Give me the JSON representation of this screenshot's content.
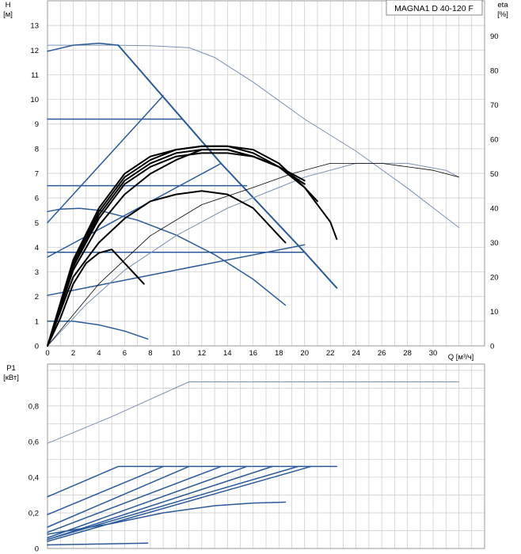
{
  "chart_data": [
    {
      "type": "line",
      "name": "pump-curves",
      "title": "MAGNA1 D 40-120 F",
      "ylabel": "H",
      "ylabel_unit": "[м]",
      "y2label": "eta",
      "y2label_unit": "[%]",
      "xlabel": "Q [м³/ч]",
      "xlim": [
        0,
        34
      ],
      "ylim": [
        0,
        14
      ],
      "y2lim": [
        0,
        100
      ],
      "x_ticks": [
        0,
        2,
        4,
        6,
        8,
        10,
        12,
        14,
        16,
        18,
        20,
        22,
        24,
        26,
        28,
        30
      ],
      "y_ticks": [
        0,
        1,
        2,
        3,
        4,
        5,
        6,
        7,
        8,
        9,
        10,
        11,
        12,
        13
      ],
      "y2_ticks": [
        0,
        10,
        20,
        30,
        40,
        50,
        60,
        70,
        80,
        90
      ],
      "grid": true,
      "colors": {
        "blue": "#2a5a9a",
        "light": "#7a90b0",
        "black": "#000000",
        "grid": "#c8c8c8"
      },
      "series": [
        {
          "kind": "max-head",
          "color": "light",
          "width": 1,
          "points": [
            [
              0,
              12.2
            ],
            [
              5,
              12.2
            ],
            [
              8,
              12.18
            ],
            [
              11,
              12.1
            ],
            [
              13,
              11.7
            ],
            [
              16,
              10.7
            ],
            [
              20,
              9.2
            ],
            [
              24,
              7.9
            ],
            [
              28,
              6.4
            ],
            [
              32,
              4.8
            ]
          ]
        },
        {
          "kind": "head",
          "color": "blue",
          "width": 1.5,
          "points": [
            [
              0,
              11.95
            ],
            [
              2,
              12.2
            ],
            [
              4,
              12.28
            ],
            [
              5.5,
              12.2
            ]
          ]
        },
        {
          "kind": "head",
          "color": "blue",
          "width": 1.5,
          "points": [
            [
              0,
              5.45
            ],
            [
              1,
              5.55
            ],
            [
              2.5,
              5.58
            ],
            [
              4,
              5.5
            ],
            [
              7,
              5.1
            ],
            [
              10,
              4.5
            ],
            [
              13,
              3.7
            ],
            [
              16,
              2.7
            ],
            [
              18.5,
              1.65
            ]
          ]
        },
        {
          "kind": "head",
          "color": "blue",
          "width": 1.5,
          "points": [
            [
              0,
              1.0
            ],
            [
              2,
              1.0
            ],
            [
              4,
              0.85
            ],
            [
              6,
              0.6
            ],
            [
              7.8,
              0.28
            ]
          ]
        },
        {
          "kind": "limit",
          "color": "blue",
          "width": 2,
          "points": [
            [
              5.5,
              12.2
            ],
            [
              13.5,
              7.4
            ],
            [
              20,
              3.8
            ],
            [
              22.5,
              2.35
            ]
          ]
        },
        {
          "kind": "control",
          "color": "blue",
          "width": 1.5,
          "points": [
            [
              0,
              5.0
            ],
            [
              9,
              10.15
            ]
          ]
        },
        {
          "kind": "control",
          "color": "blue",
          "width": 1.5,
          "points": [
            [
              0,
              3.6
            ],
            [
              13.5,
              7.4
            ]
          ]
        },
        {
          "kind": "control",
          "color": "blue",
          "width": 1.5,
          "points": [
            [
              0,
              2.05
            ],
            [
              20,
              4.1
            ]
          ]
        },
        {
          "kind": "const",
          "color": "blue",
          "width": 1.5,
          "points": [
            [
              0,
              9.2
            ],
            [
              10.5,
              9.2
            ]
          ]
        },
        {
          "kind": "const",
          "color": "blue",
          "width": 1.5,
          "points": [
            [
              0,
              6.5
            ],
            [
              15.5,
              6.5
            ]
          ]
        },
        {
          "kind": "const",
          "color": "blue",
          "width": 1.5,
          "points": [
            [
              0,
              3.8
            ],
            [
              20,
              3.8
            ]
          ]
        },
        {
          "kind": "eta-max",
          "color": "light",
          "width": 1,
          "points": [
            [
              0,
              0
            ],
            [
              3,
              12
            ],
            [
              6,
              22
            ],
            [
              10,
              32
            ],
            [
              14,
              40
            ],
            [
              18,
              46
            ],
            [
              20,
              49
            ],
            [
              24,
              53
            ],
            [
              28,
              53
            ],
            [
              31,
              51
            ],
            [
              32,
              49
            ]
          ]
        },
        {
          "kind": "eta-grey",
          "color": "black",
          "width": 0.8,
          "points": [
            [
              0,
              0
            ],
            [
              4,
              18
            ],
            [
              8,
              32
            ],
            [
              12,
              41
            ],
            [
              16,
              46
            ],
            [
              19,
              50
            ],
            [
              22,
              53
            ],
            [
              26,
              53
            ],
            [
              30,
              51
            ],
            [
              32,
              49
            ]
          ]
        },
        {
          "kind": "eta",
          "color": "black",
          "width": 2,
          "points": [
            [
              0,
              0
            ],
            [
              1,
              8
            ],
            [
              2,
              18
            ],
            [
              3,
              24
            ],
            [
              4,
              27
            ],
            [
              5,
              28
            ],
            [
              6,
              24
            ],
            [
              7.5,
              18
            ]
          ]
        },
        {
          "kind": "eta",
          "color": "black",
          "width": 2,
          "points": [
            [
              0,
              0
            ],
            [
              2,
              20
            ],
            [
              4,
              30
            ],
            [
              6,
              37
            ],
            [
              8,
              42
            ],
            [
              10,
              44
            ],
            [
              12,
              45
            ],
            [
              14,
              44
            ],
            [
              16,
              40
            ],
            [
              18,
              32
            ],
            [
              18.5,
              30
            ]
          ]
        },
        {
          "kind": "eta",
          "color": "black",
          "width": 2,
          "points": [
            [
              0,
              0
            ],
            [
              2,
              22
            ],
            [
              4,
              35
            ],
            [
              6,
              44
            ],
            [
              8,
              50
            ],
            [
              10,
              54
            ],
            [
              12,
              57
            ],
            [
              14,
              57
            ],
            [
              16,
              55
            ],
            [
              18,
              52
            ],
            [
              20,
              47
            ]
          ]
        },
        {
          "kind": "eta",
          "color": "black",
          "width": 2,
          "points": [
            [
              0,
              0
            ],
            [
              2,
              23
            ],
            [
              4,
              37
            ],
            [
              6,
              47
            ],
            [
              8,
              52
            ],
            [
              10,
              55
            ],
            [
              12,
              56
            ],
            [
              14,
              56
            ],
            [
              16,
              55
            ],
            [
              18,
              52
            ],
            [
              20,
              47
            ]
          ]
        },
        {
          "kind": "eta",
          "color": "black",
          "width": 2,
          "points": [
            [
              0,
              0
            ],
            [
              2,
              23
            ],
            [
              4,
              38
            ],
            [
              6,
              48
            ],
            [
              8,
              53
            ],
            [
              10,
              56
            ],
            [
              12,
              57
            ],
            [
              14,
              57
            ],
            [
              16,
              55
            ],
            [
              18,
              52
            ],
            [
              20,
              48
            ]
          ]
        },
        {
          "kind": "eta",
          "color": "black",
          "width": 2,
          "points": [
            [
              0,
              0
            ],
            [
              2,
              24
            ],
            [
              4,
              39
            ],
            [
              6,
              49
            ],
            [
              8,
              54
            ],
            [
              10,
              57
            ],
            [
              12,
              58
            ],
            [
              14,
              58
            ],
            [
              16,
              56
            ],
            [
              18,
              52
            ],
            [
              20,
              46
            ],
            [
              22,
              36
            ],
            [
              22.5,
              31
            ]
          ]
        },
        {
          "kind": "eta",
          "color": "black",
          "width": 2,
          "points": [
            [
              0,
              0
            ],
            [
              2,
              25
            ],
            [
              4,
              40
            ],
            [
              6,
              50
            ],
            [
              8,
              55
            ],
            [
              10,
              57
            ],
            [
              12,
              58
            ],
            [
              14,
              58
            ],
            [
              16,
              57
            ],
            [
              18,
              53
            ],
            [
              20,
              46
            ],
            [
              21,
              42
            ]
          ]
        }
      ]
    },
    {
      "type": "line",
      "name": "power-curves",
      "ylabel": "P1",
      "ylabel_unit": "[кВт]",
      "xlim": [
        0,
        34
      ],
      "ylim": [
        0,
        1.0
      ],
      "y_ticks": [
        0,
        0.2,
        0.4,
        0.6,
        0.8
      ],
      "y_tick_labels": [
        "0",
        "0,2",
        "0,4",
        "0,6",
        "0,8"
      ],
      "grid": true,
      "series": [
        {
          "kind": "max",
          "color": "light",
          "width": 1,
          "points": [
            [
              0,
              0.59
            ],
            [
              5,
              0.74
            ],
            [
              11,
              0.935
            ],
            [
              32,
              0.935
            ]
          ]
        },
        {
          "kind": "p1",
          "color": "blue",
          "width": 1.5,
          "points": [
            [
              0,
              0.29
            ],
            [
              5.5,
              0.46
            ],
            [
              22.5,
              0.46
            ]
          ]
        },
        {
          "kind": "p1",
          "color": "blue",
          "width": 1.5,
          "points": [
            [
              0,
              0.19
            ],
            [
              9,
              0.46
            ]
          ]
        },
        {
          "kind": "p1",
          "color": "blue",
          "width": 1.5,
          "points": [
            [
              0,
              0.12
            ],
            [
              11,
              0.46
            ]
          ]
        },
        {
          "kind": "p1",
          "color": "blue",
          "width": 1.5,
          "points": [
            [
              0,
              0.09
            ],
            [
              13.5,
              0.46
            ]
          ]
        },
        {
          "kind": "p1",
          "color": "blue",
          "width": 1.5,
          "points": [
            [
              0,
              0.06
            ],
            [
              15.5,
              0.46
            ]
          ]
        },
        {
          "kind": "p1",
          "color": "blue",
          "width": 1.5,
          "points": [
            [
              0,
              0.05
            ],
            [
              17.5,
              0.46
            ]
          ]
        },
        {
          "kind": "p1",
          "color": "blue",
          "width": 1.5,
          "points": [
            [
              0,
              0.05
            ],
            [
              19.5,
              0.46
            ]
          ]
        },
        {
          "kind": "p1",
          "color": "blue",
          "width": 1.5,
          "points": [
            [
              0,
              0.04
            ],
            [
              20.5,
              0.46
            ]
          ]
        },
        {
          "kind": "p1",
          "color": "blue",
          "width": 1.5,
          "points": [
            [
              0,
              0.08
            ],
            [
              5,
              0.14
            ],
            [
              9,
              0.2
            ],
            [
              13,
              0.24
            ],
            [
              16,
              0.255
            ],
            [
              18.5,
              0.26
            ]
          ]
        },
        {
          "kind": "p1",
          "color": "blue",
          "width": 1.5,
          "points": [
            [
              0,
              0.02
            ],
            [
              4,
              0.025
            ],
            [
              7.8,
              0.03
            ]
          ]
        }
      ]
    }
  ]
}
